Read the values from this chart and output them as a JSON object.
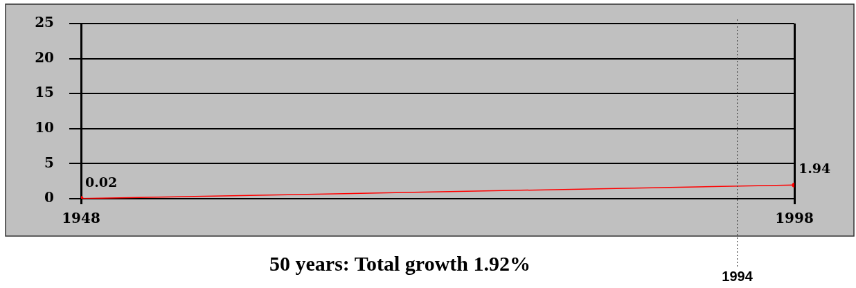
{
  "chart_data": {
    "type": "line",
    "title": "50 years: Total growth 1.92%",
    "x": [
      1948,
      1998
    ],
    "series": [
      {
        "color": "#ff0000",
        "values": [
          0.02,
          1.94
        ]
      }
    ],
    "xlim": [
      1948,
      1998
    ],
    "xticks": [
      1948,
      1998
    ],
    "ylim": [
      0,
      25
    ],
    "yticks": [
      0,
      5,
      10,
      15,
      20,
      25
    ],
    "ref_lines": [
      {
        "axis": "x",
        "value": 1994,
        "label": "1994",
        "line_style": "dotted",
        "color": "#333333"
      }
    ],
    "data_labels": true,
    "grid": true,
    "legend": false,
    "marker": "circle"
  }
}
